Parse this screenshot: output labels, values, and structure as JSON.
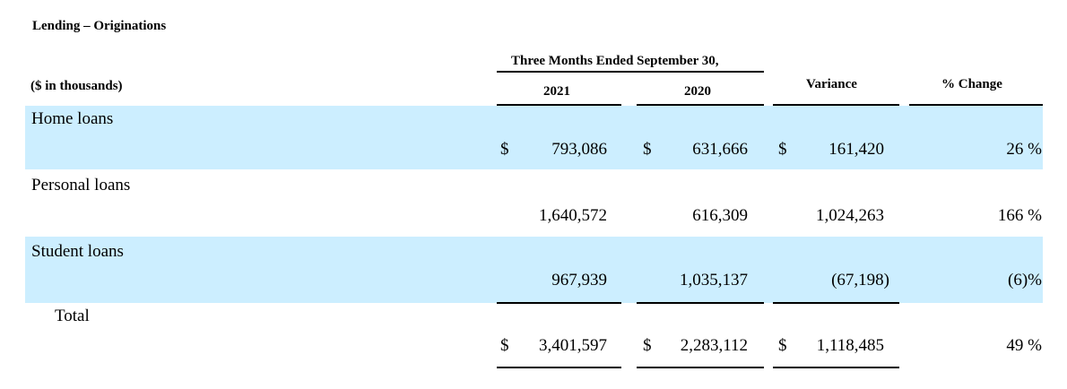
{
  "section_title": "Lending – Originations",
  "units_label": "($ in thousands)",
  "period_header": "Three Months Ended September 30,",
  "columns": {
    "y2021": "2021",
    "y2020": "2020",
    "variance": "Variance",
    "pct_change": "% Change"
  },
  "rows": [
    {
      "label": "Home loans",
      "dollar": "$",
      "v2021": "793,086",
      "v2020": "631,666",
      "variance": "161,420",
      "pct": "26 %"
    },
    {
      "label": "Personal loans",
      "dollar": "",
      "v2021": "1,640,572",
      "v2020": "616,309",
      "variance": "1,024,263",
      "pct": "166 %"
    },
    {
      "label": "Student loans",
      "dollar": "",
      "v2021": "967,939",
      "v2020": "1,035,137",
      "variance": "(67,198)",
      "pct": "(6)%"
    }
  ],
  "total": {
    "label": "Total",
    "dollar": "$",
    "v2021": "3,401,597",
    "v2020": "2,283,112",
    "variance": "1,118,485",
    "pct": "49 %"
  },
  "colors": {
    "band": "#cceeff",
    "text": "#000000"
  }
}
